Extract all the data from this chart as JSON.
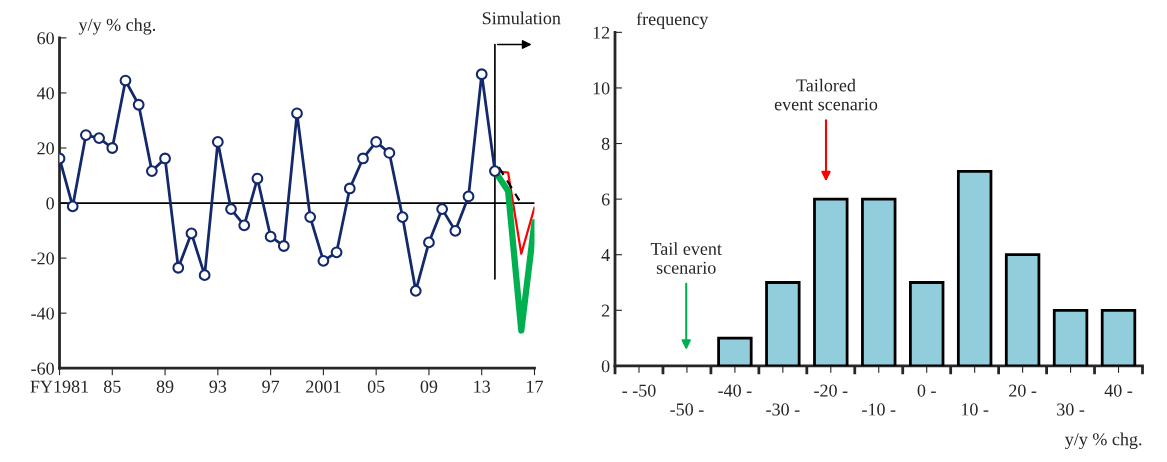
{
  "chart_data": [
    {
      "type": "line",
      "ylabel": "y/y % chg.",
      "xlim": [
        1981,
        2017
      ],
      "ylim": [
        -60,
        60
      ],
      "yticks": [
        -60,
        -40,
        -20,
        0,
        20,
        40,
        60
      ],
      "xticks": [
        {
          "value": 1981,
          "label": "FY1981"
        },
        {
          "value": 1985,
          "label": "85"
        },
        {
          "value": 1989,
          "label": "89"
        },
        {
          "value": 1993,
          "label": "93"
        },
        {
          "value": 1997,
          "label": "97"
        },
        2001,
        {
          "value": 2005,
          "label": "05"
        },
        {
          "value": 2009,
          "label": "09"
        },
        {
          "value": 2013,
          "label": "13"
        },
        {
          "value": 2017,
          "label": "17"
        }
      ],
      "grid": false,
      "legend": false,
      "ref_lines": [
        {
          "axis": "y",
          "value": 0,
          "color": "#000000"
        },
        {
          "axis": "x",
          "value": 2014,
          "label": "Simulation",
          "color": "#000000"
        }
      ],
      "series": [
        {
          "color": "#14296b",
          "marker": "circle",
          "x": [
            1981,
            1982,
            1983,
            1984,
            1985,
            1986,
            1987,
            1988,
            1989,
            1990,
            1991,
            1992,
            1993,
            1994,
            1995,
            1996,
            1997,
            1998,
            1999,
            2000,
            2001,
            2002,
            2003,
            2004,
            2005,
            2006,
            2007,
            2008,
            2009,
            2010,
            2011,
            2012,
            2013,
            2014
          ],
          "values": [
            16.2,
            -1.2,
            24.7,
            23.6,
            20,
            44.5,
            35.7,
            11.6,
            16.2,
            -23.5,
            -11,
            -26.2,
            22.2,
            -2.2,
            -8.1,
            8.9,
            -12.2,
            -15.6,
            32.6,
            -5.1,
            -21,
            -17.9,
            5.3,
            16.2,
            22.2,
            18.2,
            -5.1,
            -31.9,
            -14.3,
            -2.2,
            -10.1,
            2.4,
            46.8,
            11.6
          ]
        },
        {
          "color": "#ff0000",
          "x": [
            2014,
            2015,
            2016,
            2017
          ],
          "values": [
            11.6,
            11.1,
            -18.4,
            -1.6
          ]
        },
        {
          "color": "#00b050",
          "x": [
            2014,
            2015,
            2016,
            2017
          ],
          "values": [
            11.6,
            4.4,
            -46.3,
            -6.9
          ]
        },
        {
          "color": "#000000",
          "line_style": "dashed",
          "x": [
            2014.3,
            2015.85
          ],
          "values": [
            13,
            1
          ]
        }
      ]
    },
    {
      "type": "bar",
      "ylabel": "frequency",
      "xlabel": "y/y % chg.",
      "ylim": [
        0,
        12
      ],
      "yticks": [
        0,
        2,
        4,
        6,
        8,
        10,
        12
      ],
      "grid": false,
      "legend": false,
      "categories": [
        "- -50",
        "-50 -",
        "-40 -",
        "-30 -",
        "-20 -",
        "-10 -",
        "0 -",
        "10 -",
        "20 -",
        "30 -",
        "40 -"
      ],
      "values": [
        0,
        0,
        1,
        3,
        6,
        6,
        3,
        7,
        4,
        2,
        2
      ],
      "color": "#92cddc",
      "annotations": [
        "Tailored\nevent scenario",
        "Tail event\nscenario"
      ]
    }
  ]
}
